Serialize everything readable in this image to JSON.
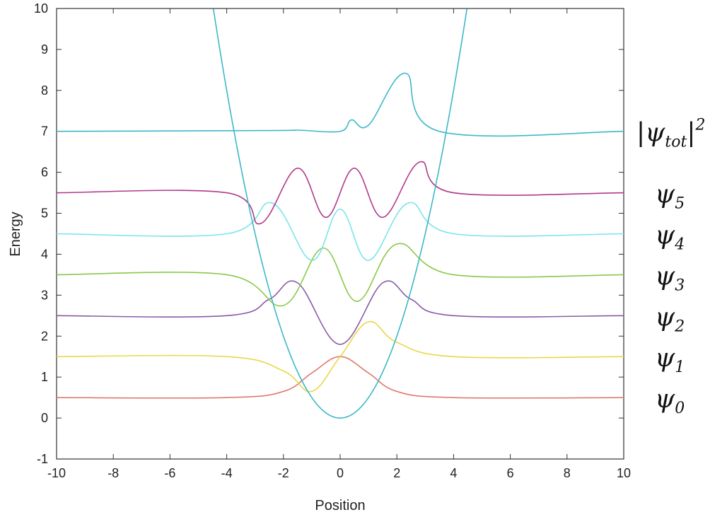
{
  "chart_data": {
    "type": "line",
    "xlabel": "Position",
    "ylabel": "Energy",
    "xlim": [
      -10,
      10
    ],
    "ylim": [
      -1,
      10
    ],
    "xticks": [
      "-10",
      "-8",
      "-6",
      "-4",
      "-2",
      "0",
      "2",
      "4",
      "6",
      "8",
      "10"
    ],
    "yticks": [
      "-1",
      "0",
      "1",
      "2",
      "3",
      "4",
      "5",
      "6",
      "7",
      "8",
      "9",
      "10"
    ],
    "grid": false,
    "potential": {
      "type": "parabola",
      "formula": "V(x) = x^2 / 2",
      "color": "#3cb8c8",
      "x": [
        -4.47,
        -4,
        -3,
        -2,
        -1,
        0,
        1,
        2,
        3,
        4,
        4.47
      ],
      "y": [
        10.0,
        8.0,
        4.5,
        2.0,
        0.5,
        0.0,
        0.5,
        2.0,
        4.5,
        8.0,
        10.0
      ]
    },
    "series": [
      {
        "name": "ψ0",
        "level": 0.5,
        "color": "#e07a6a",
        "x": [
          -10,
          -4,
          -2,
          -1,
          0,
          1,
          2,
          4,
          10
        ],
        "y": [
          0.5,
          0.5,
          0.65,
          1.1,
          1.5,
          1.1,
          0.65,
          0.5,
          0.5
        ]
      },
      {
        "name": "ψ1",
        "level": 1.5,
        "color": "#e8d84a",
        "x": [
          -10,
          -4,
          -2,
          -1,
          0,
          1,
          2,
          4,
          10
        ],
        "y": [
          1.5,
          1.5,
          1.15,
          0.65,
          1.5,
          2.35,
          1.85,
          1.5,
          1.5
        ]
      },
      {
        "name": "ψ2",
        "level": 2.5,
        "color": "#8a5aa8",
        "x": [
          -10,
          -4,
          -2.5,
          -1.5,
          0,
          1.5,
          2.5,
          4,
          10
        ],
        "y": [
          2.5,
          2.5,
          2.9,
          3.3,
          1.8,
          3.3,
          2.9,
          2.5,
          2.5
        ]
      },
      {
        "name": "ψ3",
        "level": 3.5,
        "color": "#8ac84a",
        "x": [
          -10,
          -4,
          -2,
          -0.6,
          0.6,
          2,
          4,
          10
        ],
        "y": [
          3.5,
          3.5,
          2.75,
          4.15,
          2.85,
          4.25,
          3.5,
          3.5
        ]
      },
      {
        "name": "ψ4",
        "level": 4.5,
        "color": "#7ae4ea",
        "x": [
          -10,
          -4,
          -2.4,
          -1,
          0,
          1,
          2.4,
          4,
          10
        ],
        "y": [
          4.5,
          4.5,
          5.25,
          3.85,
          5.1,
          3.85,
          5.25,
          4.5,
          4.5
        ]
      },
      {
        "name": "ψ5",
        "level": 5.5,
        "color": "#b03a8a",
        "x": [
          -10,
          -4,
          -2.8,
          -1.5,
          -0.5,
          0.5,
          1.5,
          2.8,
          4,
          10
        ],
        "y": [
          5.5,
          5.5,
          4.75,
          6.1,
          4.9,
          6.1,
          4.9,
          6.25,
          5.5,
          5.5
        ]
      },
      {
        "name": "|ψtot|²",
        "level": 7.0,
        "color": "#3cb8c8",
        "x": [
          -10,
          -2.5,
          -1.5,
          0,
          0.4,
          1,
          2.3,
          3.5,
          10
        ],
        "y": [
          7.0,
          7.02,
          7.03,
          7.0,
          7.28,
          7.15,
          8.42,
          7.0,
          7.0
        ]
      }
    ],
    "labels": [
      {
        "base": "ψ",
        "sub": "0",
        "sup": "",
        "bars": false,
        "level": 0.5
      },
      {
        "base": "ψ",
        "sub": "1",
        "sup": "",
        "bars": false,
        "level": 1.5
      },
      {
        "base": "ψ",
        "sub": "2",
        "sup": "",
        "bars": false,
        "level": 2.5
      },
      {
        "base": "ψ",
        "sub": "3",
        "sup": "",
        "bars": false,
        "level": 3.5
      },
      {
        "base": "ψ",
        "sub": "4",
        "sup": "",
        "bars": false,
        "level": 4.5
      },
      {
        "base": "ψ",
        "sub": "5",
        "sup": "",
        "bars": false,
        "level": 5.5
      },
      {
        "base": "ψ",
        "sub": "tot",
        "sup": "2",
        "bars": true,
        "level": 7.0
      }
    ]
  }
}
